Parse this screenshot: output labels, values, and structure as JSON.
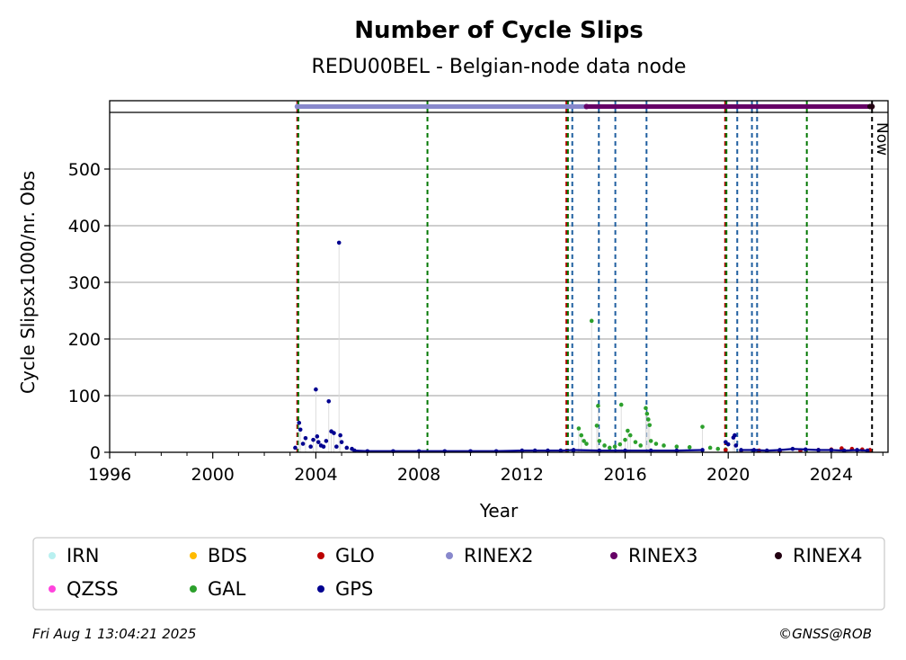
{
  "chart_data": {
    "type": "scatter",
    "title": "Number of Cycle Slips",
    "subtitle": "REDU00BEL - Belgian-node data node",
    "xlabel": "Year",
    "ylabel": "Cycle Slipsx1000/nr. Obs",
    "xlim": [
      1996,
      2026.2
    ],
    "ylim": [
      0,
      600
    ],
    "xticks": [
      1996,
      2000,
      2004,
      2008,
      2012,
      2016,
      2020,
      2024
    ],
    "yticks": [
      0,
      100,
      200,
      300,
      400,
      500
    ],
    "grid": "horizontal",
    "now_label": "Now",
    "now_x": 2025.58,
    "series": [
      {
        "name": "IRN",
        "color": "#b8f0f0",
        "points": []
      },
      {
        "name": "QZSS",
        "color": "#ff44dd",
        "points": []
      },
      {
        "name": "BDS",
        "color": "#ffbb00",
        "points": []
      },
      {
        "name": "GAL",
        "color": "#2ca02c",
        "points": [
          [
            2014.2,
            42
          ],
          [
            2014.3,
            30
          ],
          [
            2014.4,
            20
          ],
          [
            2014.5,
            15
          ],
          [
            2014.7,
            232
          ],
          [
            2014.9,
            47
          ],
          [
            2014.95,
            82
          ],
          [
            2015.0,
            20
          ],
          [
            2015.2,
            12
          ],
          [
            2015.4,
            8
          ],
          [
            2015.6,
            10
          ],
          [
            2015.8,
            14
          ],
          [
            2015.85,
            84
          ],
          [
            2016.0,
            22
          ],
          [
            2016.1,
            38
          ],
          [
            2016.2,
            30
          ],
          [
            2016.4,
            18
          ],
          [
            2016.6,
            12
          ],
          [
            2016.8,
            78
          ],
          [
            2016.85,
            68
          ],
          [
            2016.9,
            58
          ],
          [
            2016.95,
            48
          ],
          [
            2017.0,
            20
          ],
          [
            2017.2,
            15
          ],
          [
            2017.5,
            12
          ],
          [
            2018.0,
            10
          ],
          [
            2018.5,
            9
          ],
          [
            2019.0,
            45
          ],
          [
            2019.3,
            8
          ],
          [
            2019.6,
            6
          ],
          [
            2019.9,
            5
          ]
        ]
      },
      {
        "name": "GLO",
        "color": "#bb0000",
        "points": [
          [
            2019.9,
            4
          ],
          [
            2020.5,
            3
          ],
          [
            2021.2,
            3
          ],
          [
            2022.0,
            2
          ],
          [
            2022.8,
            3
          ],
          [
            2023.5,
            4
          ],
          [
            2024.0,
            5
          ],
          [
            2024.4,
            7
          ],
          [
            2024.8,
            6
          ],
          [
            2025.2,
            5
          ],
          [
            2025.5,
            4
          ]
        ]
      },
      {
        "name": "GPS",
        "color": "#000090",
        "points": [
          [
            2003.2,
            8
          ],
          [
            2003.35,
            52
          ],
          [
            2003.4,
            40
          ],
          [
            2003.5,
            15
          ],
          [
            2003.6,
            25
          ],
          [
            2003.8,
            10
          ],
          [
            2003.9,
            22
          ],
          [
            2004.0,
            111
          ],
          [
            2004.05,
            28
          ],
          [
            2004.1,
            18
          ],
          [
            2004.2,
            12
          ],
          [
            2004.3,
            10
          ],
          [
            2004.4,
            20
          ],
          [
            2004.5,
            90
          ],
          [
            2004.6,
            37
          ],
          [
            2004.7,
            34
          ],
          [
            2004.8,
            10
          ],
          [
            2004.9,
            370
          ],
          [
            2004.95,
            30
          ],
          [
            2005.0,
            18
          ],
          [
            2005.2,
            8
          ],
          [
            2005.4,
            6
          ],
          [
            2005.5,
            3
          ],
          [
            2006.0,
            2
          ],
          [
            2007.0,
            2
          ],
          [
            2008.0,
            2
          ],
          [
            2009.0,
            2
          ],
          [
            2010.0,
            2
          ],
          [
            2011.0,
            2
          ],
          [
            2012.0,
            3
          ],
          [
            2012.5,
            3
          ],
          [
            2013.0,
            3
          ],
          [
            2013.5,
            3
          ],
          [
            2014.0,
            4
          ],
          [
            2015.0,
            3
          ],
          [
            2016.0,
            3
          ],
          [
            2017.0,
            3
          ],
          [
            2018.0,
            3
          ],
          [
            2019.0,
            4
          ],
          [
            2019.9,
            18
          ],
          [
            2020.0,
            14
          ],
          [
            2020.2,
            26
          ],
          [
            2020.25,
            30
          ],
          [
            2020.3,
            12
          ],
          [
            2020.5,
            4
          ],
          [
            2021.0,
            4
          ],
          [
            2021.5,
            3
          ],
          [
            2022.0,
            4
          ],
          [
            2022.5,
            6
          ],
          [
            2023.0,
            5
          ],
          [
            2023.5,
            4
          ],
          [
            2024.0,
            4
          ],
          [
            2024.5,
            3
          ],
          [
            2025.0,
            4
          ],
          [
            2025.4,
            3
          ]
        ]
      }
    ],
    "rinex_bars": [
      {
        "name": "RINEX2",
        "color": "#8888cc",
        "start": 2003.28,
        "end": 2014.5
      },
      {
        "name": "RINEX3",
        "color": "#660066",
        "start": 2014.5,
        "end": 2025.58
      },
      {
        "name": "RINEX4",
        "color": "#220011",
        "start": 2025.5,
        "end": 2025.58
      }
    ],
    "vlines": [
      {
        "x": 2003.28,
        "color": "#bb0000"
      },
      {
        "x": 2003.32,
        "color": "#007700"
      },
      {
        "x": 2008.33,
        "color": "#007700"
      },
      {
        "x": 2013.72,
        "color": "#bb0000"
      },
      {
        "x": 2013.78,
        "color": "#007700"
      },
      {
        "x": 2013.95,
        "color": "#1f5fa0"
      },
      {
        "x": 2014.98,
        "color": "#1f5fa0"
      },
      {
        "x": 2015.62,
        "color": "#1f5fa0"
      },
      {
        "x": 2016.83,
        "color": "#1f5fa0"
      },
      {
        "x": 2019.88,
        "color": "#bb0000"
      },
      {
        "x": 2019.93,
        "color": "#007700"
      },
      {
        "x": 2020.35,
        "color": "#1f5fa0"
      },
      {
        "x": 2020.92,
        "color": "#1f5fa0"
      },
      {
        "x": 2021.12,
        "color": "#1f5fa0"
      },
      {
        "x": 2023.05,
        "color": "#007700"
      },
      {
        "x": 2025.58,
        "color": "#000000"
      }
    ],
    "legend": [
      {
        "name": "IRN",
        "color": "#b8f0f0"
      },
      {
        "name": "BDS",
        "color": "#ffbb00"
      },
      {
        "name": "GLO",
        "color": "#bb0000"
      },
      {
        "name": "RINEX2",
        "color": "#8888cc"
      },
      {
        "name": "RINEX3",
        "color": "#660066"
      },
      {
        "name": "RINEX4",
        "color": "#220011"
      },
      {
        "name": "QZSS",
        "color": "#ff44dd"
      },
      {
        "name": "GAL",
        "color": "#2ca02c"
      },
      {
        "name": "GPS",
        "color": "#000090"
      }
    ]
  },
  "footer": {
    "timestamp": "Fri Aug  1 13:04:21 2025",
    "credit": "©GNSS@ROB"
  }
}
